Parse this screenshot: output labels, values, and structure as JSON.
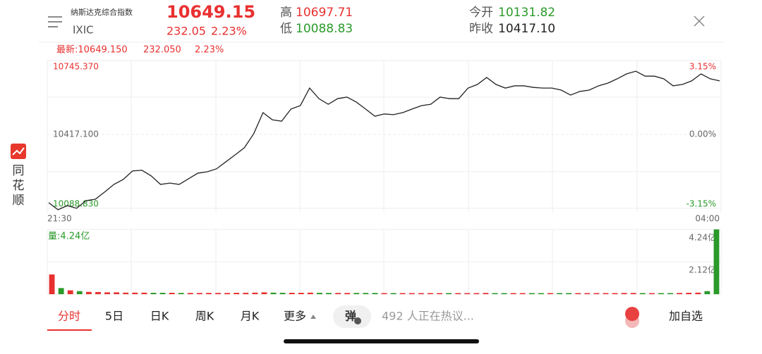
{
  "header": {
    "index_name": "纳斯达克综合指数",
    "code": "IXIC",
    "price": "10649.15",
    "change": "232.05",
    "change_pct": "2.23%",
    "high_label": "高",
    "high": "10697.71",
    "low_label": "低",
    "low": "10088.83",
    "open_label": "今开",
    "open": "10131.82",
    "prev_label": "昨收",
    "prev": "10417.10"
  },
  "sidebar": {
    "brand": [
      "同",
      "花",
      "顺"
    ]
  },
  "info_line": {
    "latest": "最新:10649.150",
    "change": "232.050",
    "change_pct": "2.23%"
  },
  "price_chart": {
    "type": "line",
    "color": "#222222",
    "ylim": [
      10088.83,
      10745.37
    ],
    "yticks": [
      {
        "value": 10745.37,
        "label": "10745.370"
      },
      {
        "value": 10417.1,
        "label": "10417.100"
      },
      {
        "value": 10088.83,
        "label": "10088.830"
      }
    ],
    "pct_labels": [
      "3.15%",
      "0.00%",
      "-3.15%"
    ],
    "time_labels": [
      "21:30",
      "04:00"
    ],
    "values": [
      10113.9,
      10082.6,
      10101,
      10089,
      10123,
      10129,
      10161,
      10195,
      10217,
      10255,
      10258,
      10233,
      10195,
      10201,
      10195,
      10220,
      10245,
      10251,
      10264,
      10295,
      10326,
      10358,
      10420,
      10514,
      10482,
      10476,
      10530,
      10545,
      10623,
      10576,
      10551,
      10576,
      10583,
      10561,
      10530,
      10498,
      10508,
      10505,
      10514,
      10530,
      10545,
      10551,
      10583,
      10576,
      10576,
      10623,
      10639,
      10670,
      10639,
      10623,
      10633,
      10633,
      10626,
      10623,
      10623,
      10614,
      10592,
      10608,
      10614,
      10633,
      10645,
      10664,
      10686,
      10698,
      10676,
      10676,
      10664,
      10633,
      10639,
      10655,
      10686,
      10664,
      10655
    ]
  },
  "volume_chart": {
    "type": "bar",
    "label": "量:4.24亿",
    "up_color": "#e93030",
    "down_color": "#2a9a2a",
    "ylim": [
      0,
      4.24
    ],
    "yticks": [
      {
        "value": 4.24,
        "label": "4.24亿"
      },
      {
        "value": 2.12,
        "label": "2.12亿"
      }
    ],
    "values": [
      1.29,
      0.4,
      0.25,
      0.2,
      0.15,
      0.14,
      0.12,
      0.12,
      0.1,
      0.1,
      0.1,
      0.09,
      0.09,
      0.09,
      0.08,
      0.08,
      0.08,
      0.08,
      0.08,
      0.08,
      0.09,
      0.09,
      0.1,
      0.12,
      0.1,
      0.09,
      0.09,
      0.09,
      0.1,
      0.09,
      0.08,
      0.08,
      0.08,
      0.08,
      0.08,
      0.08,
      0.07,
      0.07,
      0.07,
      0.07,
      0.07,
      0.07,
      0.07,
      0.07,
      0.07,
      0.07,
      0.07,
      0.08,
      0.07,
      0.07,
      0.07,
      0.07,
      0.07,
      0.07,
      0.07,
      0.07,
      0.07,
      0.07,
      0.07,
      0.07,
      0.07,
      0.07,
      0.08,
      0.08,
      0.07,
      0.07,
      0.07,
      0.07,
      0.08,
      0.09,
      0.1,
      0.2,
      4.24
    ]
  },
  "tabs": [
    "分时",
    "5日",
    "日K",
    "周K",
    "月K",
    "更多"
  ],
  "comment_badge": "弹",
  "discussion": "492 人正在热议...",
  "add_button": "加自选"
}
